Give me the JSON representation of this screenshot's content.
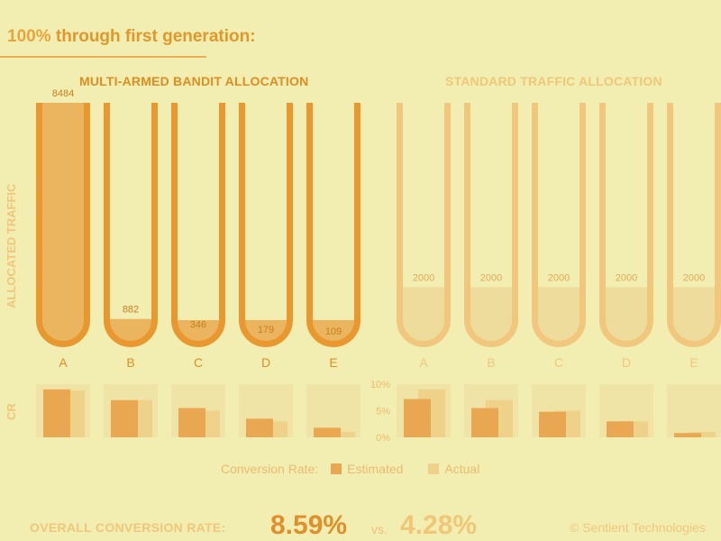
{
  "headline": {
    "percent": "100%",
    "text": " through first generation:"
  },
  "y_labels": {
    "traffic": "ALLOCATED TRAFFIC",
    "cr": "CR"
  },
  "legend": {
    "title": "Conversion Rate:",
    "estimated": "Estimated",
    "actual": "Actual"
  },
  "footer": {
    "label": "OVERALL CONVERSION RATE:",
    "bandit_value": "8.59%",
    "vs": "vs.",
    "standard_value": "4.28%",
    "copyright": "© Sentient Technologies"
  },
  "colors": {
    "background": "#f2eeb2",
    "bandit_outline": "#e8982e",
    "bandit_fill": "#ebb55f",
    "bandit_actual": "#f0d48f",
    "standard_outline": "#f0c77d",
    "standard_fill": "#eedc9c",
    "cr_box": "#efe3a6",
    "estimated": "#e8a750",
    "actual": "#efd28a"
  },
  "chart_data": [
    {
      "type": "bar",
      "title": "MULTI-ARMED BANDIT ALLOCATION",
      "ylabel": "ALLOCATED TRAFFIC",
      "categories": [
        "A",
        "B",
        "C",
        "D",
        "E"
      ],
      "values": [
        8484,
        882,
        346,
        179,
        109
      ],
      "ylim": [
        0,
        8484
      ]
    },
    {
      "type": "bar",
      "title": "STANDARD TRAFFIC ALLOCATION",
      "ylabel": "ALLOCATED TRAFFIC",
      "categories": [
        "A",
        "B",
        "C",
        "D",
        "E"
      ],
      "values": [
        2000,
        2000,
        2000,
        2000,
        2000
      ],
      "ylim": [
        0,
        8484
      ]
    },
    {
      "type": "bar",
      "title": "CR",
      "categories": [
        "A",
        "B",
        "C",
        "D",
        "E"
      ],
      "series": [
        {
          "name": "Estimated",
          "values": [
            9.0,
            7.0,
            5.5,
            3.5,
            1.8
          ]
        },
        {
          "name": "Actual",
          "values": [
            8.8,
            7.0,
            5.0,
            3.0,
            1.0
          ]
        }
      ],
      "ylim": [
        0,
        10
      ]
    },
    {
      "type": "bar",
      "title": "CR",
      "categories": [
        "A",
        "B",
        "C",
        "D",
        "E"
      ],
      "series": [
        {
          "name": "Estimated",
          "values": [
            7.2,
            5.5,
            4.8,
            3.0,
            0.8
          ]
        },
        {
          "name": "Actual",
          "values": [
            9.0,
            7.0,
            5.0,
            3.0,
            1.0
          ]
        }
      ],
      "ylim": [
        0,
        10
      ],
      "yticks": [
        "0%",
        "5%",
        "10%"
      ]
    }
  ]
}
